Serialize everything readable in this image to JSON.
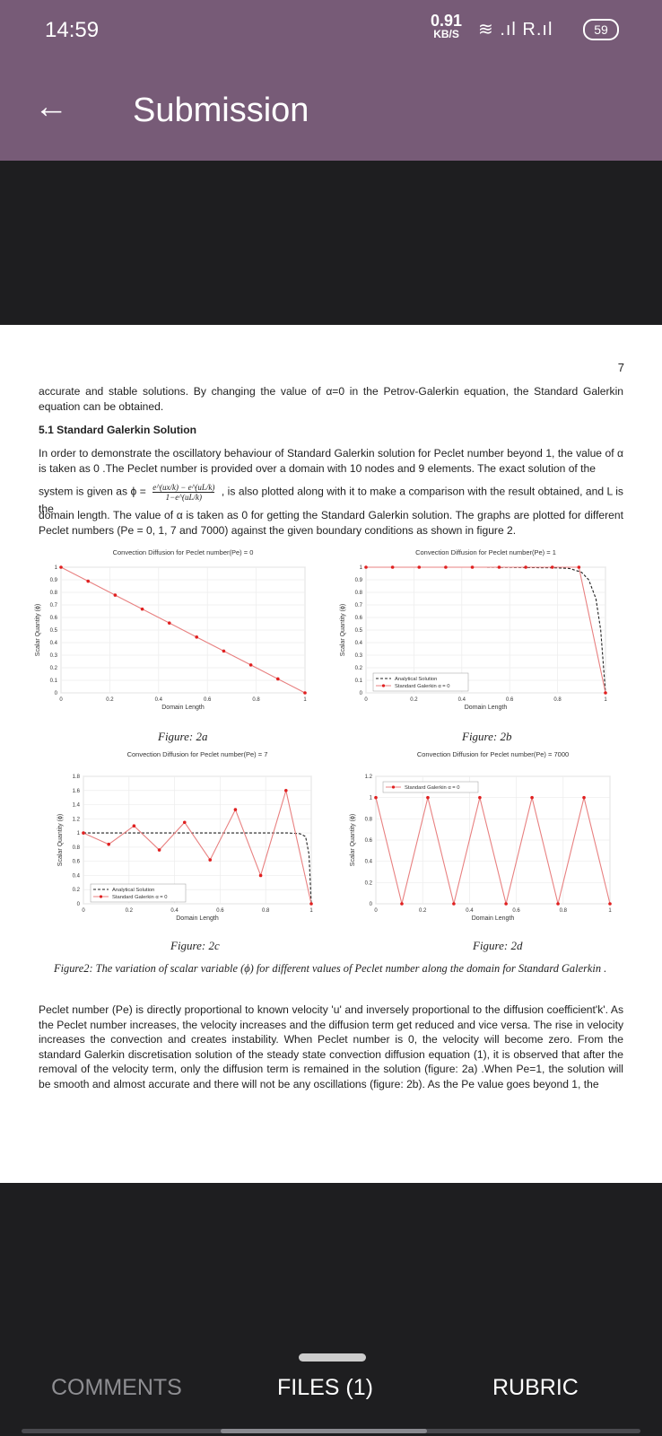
{
  "status_bar": {
    "time": "14:59",
    "net_speed": "0.91",
    "net_unit": "KB/S",
    "signal_icons": "≋ .ıl R.ıl",
    "battery": "59"
  },
  "app_bar": {
    "title": "Submission",
    "back_icon": "arrow-left-icon"
  },
  "document": {
    "page_number": "7",
    "intro": "accurate and stable solutions. By changing the value of α=0 in the Petrov-Galerkin equation, the Standard Galerkin equation can be obtained.",
    "section_heading": "5.1 Standard Galerkin Solution",
    "paragraph_a": "In order to demonstrate the oscillatory behaviour of Standard Galerkin solution for Peclet number beyond 1, the value of α is taken as 0 .The Peclet number is provided over a domain with 10 nodes and 9 elements. The exact solution of the",
    "formula_numerator": "e^(ux/k) − e^(uL/k)",
    "formula_denominator": "1−e^(uL/k)",
    "paragraph_b_pre": "system is given as ϕ =",
    "paragraph_b_post": ", is also plotted along with it to make a comparison with the result obtained, and L is the",
    "paragraph_c": "domain length. The value of α is taken as 0 for getting the Standard Galerkin solution. The graphs are plotted for different Peclet numbers (Pe = 0, 1, 7 and 7000) against the given boundary conditions as shown in figure 2.",
    "fig_2a": "Figure: 2a",
    "fig_2b": "Figure: 2b",
    "fig_2c": "Figure: 2c",
    "fig_2d": "Figure: 2d",
    "caption": "Figure2: The variation of scalar variable (ϕ) for different values of Peclet number along the domain for Standard Galerkin .",
    "body": "Peclet number (Pe) is directly proportional to known velocity 'u' and inversely proportional to the diffusion coefficient'k'. As the Peclet number increases, the velocity increases and the diffusion term get reduced and vice versa. The rise in velocity increases the convection and creates instability. When Peclet number is 0, the velocity will become zero. From the standard Galerkin discretisation solution of the steady state convection diffusion equation (1), it is observed that after the removal of the velocity term, only the diffusion term is remained in the solution (figure: 2a) .When Pe=1, the solution will be smooth and almost accurate and there will not be any oscillations (figure: 2b). As the Pe value goes beyond 1, the"
  },
  "chart_data": [
    {
      "type": "line",
      "title": "Convection Diffusion for Peclet number(Pe) = 0",
      "xlabel": "Domain Length",
      "ylabel": "Scalar Quantity (ϕ)",
      "xlim": [
        0,
        1
      ],
      "ylim": [
        0,
        1
      ],
      "xticks": [
        "0",
        "0.2",
        "0.4",
        "0.6",
        "0.8",
        "1"
      ],
      "yticks": [
        "0",
        "0.1",
        "0.2",
        "0.3",
        "0.4",
        "0.5",
        "0.6",
        "0.7",
        "0.8",
        "0.9",
        "1"
      ],
      "legend": [],
      "series": [
        {
          "name": "",
          "style": "red-marker",
          "x": [
            0,
            0.111,
            0.222,
            0.333,
            0.444,
            0.556,
            0.667,
            0.778,
            0.889,
            1
          ],
          "y": [
            1,
            0.889,
            0.778,
            0.667,
            0.556,
            0.444,
            0.333,
            0.222,
            0.111,
            0
          ]
        }
      ]
    },
    {
      "type": "line",
      "title": "Convection Diffusion for Peclet number(Pe) = 1",
      "xlabel": "Domain Length",
      "ylabel": "Scalar Quantity (ϕ)",
      "xlim": [
        0,
        1
      ],
      "ylim": [
        0,
        1
      ],
      "xticks": [
        "0",
        "0.2",
        "0.4",
        "0.6",
        "0.8",
        "1"
      ],
      "yticks": [
        "0",
        "0.1",
        "0.2",
        "0.3",
        "0.4",
        "0.5",
        "0.6",
        "0.7",
        "0.8",
        "0.9",
        "1"
      ],
      "legend": [
        "Analytical Solution",
        "Standard Galerkin α = 0"
      ],
      "legend_position": "bottom-left",
      "series": [
        {
          "name": "Analytical Solution",
          "style": "dashed",
          "x": [
            0,
            0.5,
            0.8,
            0.85,
            0.9,
            0.93,
            0.96,
            0.98,
            1
          ],
          "y": [
            1,
            1,
            0.995,
            0.99,
            0.96,
            0.9,
            0.75,
            0.5,
            0
          ]
        },
        {
          "name": "Standard Galerkin α = 0",
          "style": "red-marker",
          "x": [
            0,
            0.111,
            0.222,
            0.333,
            0.444,
            0.556,
            0.667,
            0.778,
            0.889,
            1
          ],
          "y": [
            1,
            1,
            1,
            1,
            1,
            1,
            1,
            1,
            1,
            0
          ]
        }
      ]
    },
    {
      "type": "line",
      "title": "Convection Diffusion for Peclet number(Pe) = 7",
      "xlabel": "Domain Length",
      "ylabel": "Scalar Quantity (ϕ)",
      "xlim": [
        0,
        1
      ],
      "ylim": [
        0,
        1.8
      ],
      "xticks": [
        "0",
        "0.2",
        "0.4",
        "0.6",
        "0.8",
        "1"
      ],
      "yticks": [
        "0",
        "0.2",
        "0.4",
        "0.6",
        "0.8",
        "1",
        "1.2",
        "1.4",
        "1.6",
        "1.8"
      ],
      "legend": [
        "Analytical Solution",
        "Standard Galerkin α = 0"
      ],
      "legend_position": "bottom-left",
      "series": [
        {
          "name": "Analytical Solution",
          "style": "dashed",
          "x": [
            0,
            0.9,
            0.95,
            0.975,
            0.99,
            1
          ],
          "y": [
            1,
            1,
            0.99,
            0.95,
            0.7,
            0
          ]
        },
        {
          "name": "Standard Galerkin α = 0",
          "style": "red-marker",
          "x": [
            0,
            0.111,
            0.222,
            0.333,
            0.444,
            0.556,
            0.667,
            0.778,
            0.889,
            1
          ],
          "y": [
            1,
            0.84,
            1.1,
            0.76,
            1.15,
            0.62,
            1.33,
            0.4,
            1.6,
            0
          ]
        }
      ]
    },
    {
      "type": "line",
      "title": "Convection Diffusion for Peclet number(Pe) = 7000",
      "xlabel": "Domain Length",
      "ylabel": "Scalar Quantity (ϕ)",
      "xlim": [
        0,
        1
      ],
      "ylim": [
        0,
        1.2
      ],
      "xticks": [
        "0",
        "0.2",
        "0.4",
        "0.6",
        "0.8",
        "1"
      ],
      "yticks": [
        "0",
        "0.2",
        "0.4",
        "0.6",
        "0.8",
        "1",
        "1.2"
      ],
      "legend": [
        "Standard Galerkin α = 0"
      ],
      "legend_position": "top-left",
      "series": [
        {
          "name": "Standard Galerkin α = 0",
          "style": "red-marker",
          "x": [
            0,
            0.111,
            0.222,
            0.333,
            0.444,
            0.556,
            0.667,
            0.778,
            0.889,
            1
          ],
          "y": [
            1,
            0,
            1,
            0,
            1,
            0,
            1,
            0,
            1,
            0
          ]
        }
      ]
    }
  ],
  "bottom_tabs": {
    "comments": "COMMENTS",
    "files": "FILES (1)",
    "rubric": "RUBRIC"
  }
}
